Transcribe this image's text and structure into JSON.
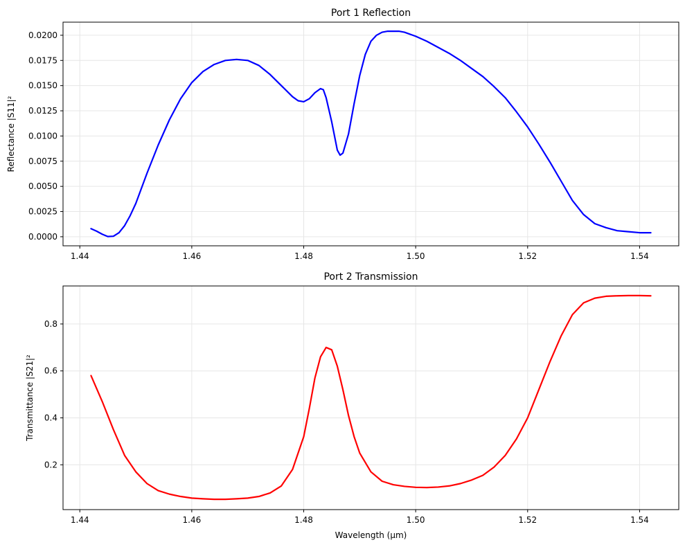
{
  "figure": {
    "background": "#ffffff"
  },
  "chart_data": [
    {
      "id": "reflection",
      "type": "line",
      "title": "Port 1 Reflection",
      "xlabel": "",
      "ylabel": "Reflectance |S11|²",
      "xlim": [
        1.437,
        1.547
      ],
      "ylim": [
        -0.0009,
        0.0213
      ],
      "xticks": [
        1.44,
        1.46,
        1.48,
        1.5,
        1.52,
        1.54
      ],
      "xtick_labels": [
        "1.44",
        "1.46",
        "1.48",
        "1.50",
        "1.52",
        "1.54"
      ],
      "yticks": [
        0.0,
        0.0025,
        0.005,
        0.0075,
        0.01,
        0.0125,
        0.015,
        0.0175,
        0.02
      ],
      "ytick_labels": [
        "0.0000",
        "0.0025",
        "0.0050",
        "0.0075",
        "0.0100",
        "0.0125",
        "0.0150",
        "0.0175",
        "0.0200"
      ],
      "grid": true,
      "legend": "none",
      "series": [
        {
          "color": "#0000ff",
          "x": [
            1.442,
            1.443,
            1.444,
            1.445,
            1.446,
            1.447,
            1.448,
            1.449,
            1.45,
            1.452,
            1.454,
            1.456,
            1.458,
            1.46,
            1.462,
            1.464,
            1.466,
            1.468,
            1.47,
            1.472,
            1.474,
            1.476,
            1.478,
            1.479,
            1.48,
            1.481,
            1.482,
            1.483,
            1.4835,
            1.484,
            1.485,
            1.486,
            1.4865,
            1.487,
            1.488,
            1.489,
            1.49,
            1.491,
            1.492,
            1.493,
            1.494,
            1.495,
            1.496,
            1.497,
            1.498,
            1.5,
            1.502,
            1.504,
            1.506,
            1.508,
            1.51,
            1.512,
            1.514,
            1.516,
            1.518,
            1.52,
            1.522,
            1.524,
            1.526,
            1.528,
            1.53,
            1.532,
            1.534,
            1.536,
            1.538,
            1.54,
            1.542
          ],
          "y": [
            0.0008,
            0.00055,
            0.00025,
            2e-05,
            5e-05,
            0.0004,
            0.0011,
            0.0021,
            0.0033,
            0.0063,
            0.0091,
            0.0116,
            0.0137,
            0.0153,
            0.0164,
            0.0171,
            0.0175,
            0.0176,
            0.0175,
            0.017,
            0.0161,
            0.015,
            0.0139,
            0.0135,
            0.0134,
            0.0137,
            0.0143,
            0.0147,
            0.0146,
            0.0138,
            0.0114,
            0.0086,
            0.0081,
            0.0083,
            0.0102,
            0.0132,
            0.016,
            0.0181,
            0.0194,
            0.02,
            0.0203,
            0.0204,
            0.0204,
            0.0204,
            0.0203,
            0.0199,
            0.0194,
            0.0188,
            0.0182,
            0.0175,
            0.0167,
            0.0159,
            0.0149,
            0.0138,
            0.0124,
            0.0109,
            0.0092,
            0.0074,
            0.0055,
            0.0036,
            0.0022,
            0.0013,
            0.0009,
            0.0006,
            0.0005,
            0.0004,
            0.0004
          ]
        }
      ]
    },
    {
      "id": "transmission",
      "type": "line",
      "title": "Port 2 Transmission",
      "xlabel": "Wavelength (μm)",
      "ylabel": "Transmittance |S21|²",
      "xlim": [
        1.437,
        1.547
      ],
      "ylim": [
        0.009,
        0.962
      ],
      "xticks": [
        1.44,
        1.46,
        1.48,
        1.5,
        1.52,
        1.54
      ],
      "xtick_labels": [
        "1.44",
        "1.46",
        "1.48",
        "1.50",
        "1.52",
        "1.54"
      ],
      "yticks": [
        0.2,
        0.4,
        0.6,
        0.8
      ],
      "ytick_labels": [
        "0.2",
        "0.4",
        "0.6",
        "0.8"
      ],
      "grid": true,
      "legend": "none",
      "series": [
        {
          "color": "#ff0000",
          "x": [
            1.442,
            1.444,
            1.446,
            1.448,
            1.45,
            1.452,
            1.454,
            1.456,
            1.458,
            1.46,
            1.462,
            1.464,
            1.466,
            1.468,
            1.47,
            1.472,
            1.474,
            1.476,
            1.478,
            1.48,
            1.481,
            1.482,
            1.483,
            1.484,
            1.485,
            1.486,
            1.487,
            1.488,
            1.489,
            1.49,
            1.492,
            1.494,
            1.496,
            1.498,
            1.5,
            1.502,
            1.504,
            1.506,
            1.508,
            1.51,
            1.512,
            1.514,
            1.516,
            1.518,
            1.52,
            1.522,
            1.524,
            1.526,
            1.528,
            1.53,
            1.532,
            1.534,
            1.536,
            1.538,
            1.54,
            1.542
          ],
          "y": [
            0.58,
            0.47,
            0.35,
            0.24,
            0.17,
            0.12,
            0.09,
            0.075,
            0.065,
            0.058,
            0.055,
            0.053,
            0.053,
            0.055,
            0.058,
            0.065,
            0.08,
            0.11,
            0.18,
            0.32,
            0.44,
            0.57,
            0.66,
            0.7,
            0.69,
            0.62,
            0.52,
            0.41,
            0.32,
            0.25,
            0.17,
            0.13,
            0.115,
            0.108,
            0.104,
            0.103,
            0.105,
            0.11,
            0.12,
            0.135,
            0.155,
            0.19,
            0.24,
            0.31,
            0.4,
            0.52,
            0.64,
            0.75,
            0.84,
            0.89,
            0.91,
            0.918,
            0.92,
            0.921,
            0.921,
            0.92
          ]
        }
      ]
    }
  ]
}
